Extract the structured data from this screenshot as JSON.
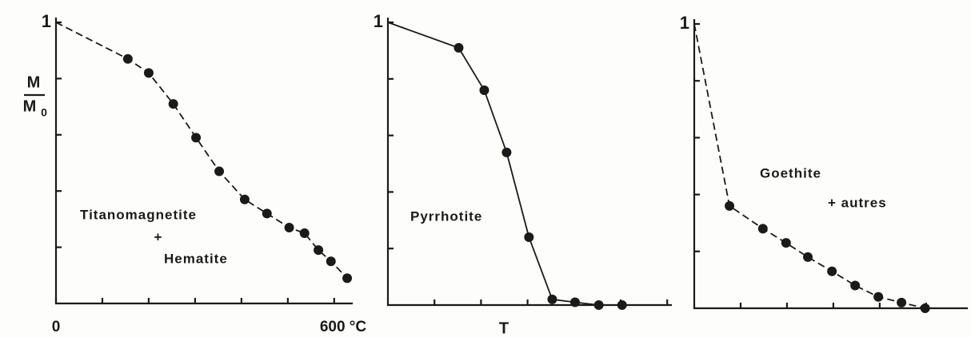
{
  "chart_data": [
    {
      "type": "line",
      "color": "#1a1a1a",
      "line_style": "dashed",
      "x": [
        0,
        155,
        200,
        253,
        302,
        352,
        407,
        455,
        503,
        536,
        566,
        593,
        628
      ],
      "values": [
        1,
        0.87,
        0.82,
        0.71,
        0.59,
        0.47,
        0.37,
        0.32,
        0.27,
        0.25,
        0.19,
        0.15,
        0.09
      ],
      "xlim": [
        0,
        640
      ],
      "ylim": [
        0,
        1
      ],
      "xticks": [
        0,
        {
          "value": 600,
          "label": "600 °C"
        }
      ],
      "minor_xticks": [
        100,
        200,
        300,
        400,
        500
      ],
      "yticks": [
        1
      ],
      "minor_yticks": [
        0.2,
        0.4,
        0.6,
        0.8
      ],
      "ylabel": {
        "numerator": "M",
        "denominator": "M",
        "subscript": "0"
      },
      "annotations": [
        "Titanomagnetite",
        "+",
        "Hematite"
      ]
    },
    {
      "type": "line",
      "color": "#1a1a1a",
      "line_style": "solid",
      "x": [
        0,
        152,
        207,
        255,
        303,
        353,
        402,
        453,
        503
      ],
      "values": [
        1,
        0.91,
        0.76,
        0.54,
        0.24,
        0.02,
        0.01,
        0,
        0
      ],
      "xlim": [
        0,
        610
      ],
      "ylim": [
        0,
        1
      ],
      "minor_xticks": [
        100,
        200,
        300,
        400,
        500,
        600
      ],
      "yticks": [
        1
      ],
      "minor_yticks": [
        0.2,
        0.4,
        0.6,
        0.8
      ],
      "xlabel": "T",
      "annotations": [
        "Pyrrhotite"
      ]
    },
    {
      "type": "line",
      "color": "#1a1a1a",
      "line_style": "dashed",
      "x": [
        0,
        76,
        148,
        198,
        245,
        297,
        347,
        397,
        447,
        498
      ],
      "values": [
        1,
        0.36,
        0.28,
        0.23,
        0.18,
        0.13,
        0.08,
        0.04,
        0.02,
        0
      ],
      "xlim": [
        0,
        590
      ],
      "ylim": [
        0,
        1
      ],
      "minor_xticks": [
        100,
        200,
        300,
        400,
        500
      ],
      "yticks": [
        1
      ],
      "minor_yticks": [
        0.2,
        0.4,
        0.6,
        0.8
      ],
      "annotations": [
        "Goethite",
        "+ autres"
      ]
    }
  ]
}
